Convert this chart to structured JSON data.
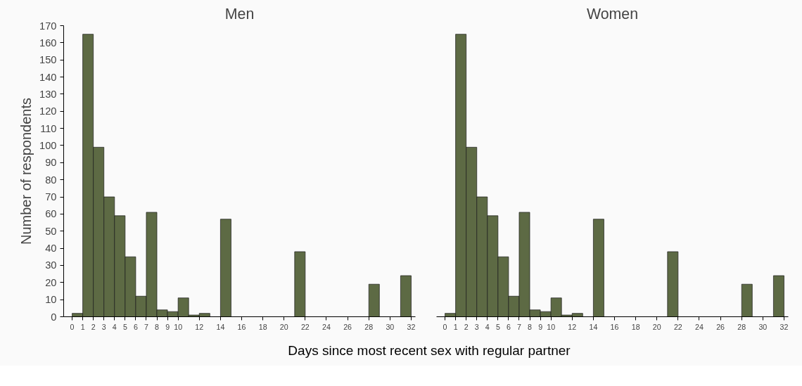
{
  "chart_data": [
    {
      "type": "histogram",
      "title": "Men",
      "xlabel": "Days since most recent sex with regular partner",
      "ylabel": "Number of respondents",
      "color": "#5d6a44",
      "bins": [
        0,
        1,
        2,
        3,
        4,
        5,
        6,
        7,
        8,
        9,
        10,
        11,
        12,
        13,
        14,
        15,
        16,
        17,
        18,
        19,
        20,
        21,
        22,
        23,
        24,
        25,
        26,
        27,
        28,
        29,
        30,
        31,
        32
      ],
      "values": [
        2,
        165,
        99,
        70,
        59,
        35,
        12,
        61,
        4,
        3,
        11,
        1,
        2,
        0,
        57,
        0,
        0,
        0,
        0,
        0,
        0,
        38,
        0,
        0,
        0,
        0,
        0,
        0,
        19,
        0,
        0,
        24
      ],
      "xlim": [
        -0.8,
        32.4
      ],
      "ylim": [
        0,
        170
      ],
      "xticks": [
        0,
        1,
        2,
        3,
        4,
        5,
        6,
        7,
        8,
        9,
        10,
        12,
        14,
        16,
        18,
        20,
        22,
        24,
        26,
        28,
        30,
        32
      ],
      "yticks": [
        0,
        10,
        20,
        30,
        40,
        50,
        60,
        70,
        80,
        90,
        100,
        110,
        120,
        130,
        140,
        150,
        160,
        170
      ],
      "grid": false
    },
    {
      "type": "histogram",
      "title": "Women",
      "color": "#5d6a44",
      "bins": [
        0,
        1,
        2,
        3,
        4,
        5,
        6,
        7,
        8,
        9,
        10,
        11,
        12,
        13,
        14,
        15,
        16,
        17,
        18,
        19,
        20,
        21,
        22,
        23,
        24,
        25,
        26,
        27,
        28,
        29,
        30,
        31,
        32
      ],
      "values": [
        2,
        165,
        99,
        70,
        59,
        35,
        12,
        61,
        4,
        3,
        11,
        1,
        2,
        0,
        57,
        0,
        0,
        0,
        0,
        0,
        0,
        38,
        0,
        0,
        0,
        0,
        0,
        0,
        19,
        0,
        0,
        24
      ],
      "xlim": [
        -0.8,
        32.4
      ],
      "ylim": [
        0,
        170
      ],
      "xticks": [
        0,
        1,
        2,
        3,
        4,
        5,
        6,
        7,
        8,
        9,
        10,
        12,
        14,
        16,
        18,
        20,
        22,
        24,
        26,
        28,
        30,
        32
      ],
      "yticks": [
        0,
        10,
        20,
        30,
        40,
        50,
        60,
        70,
        80,
        90,
        100,
        110,
        120,
        130,
        140,
        150,
        160,
        170
      ],
      "grid": false,
      "tick_labels": "x"
    }
  ]
}
